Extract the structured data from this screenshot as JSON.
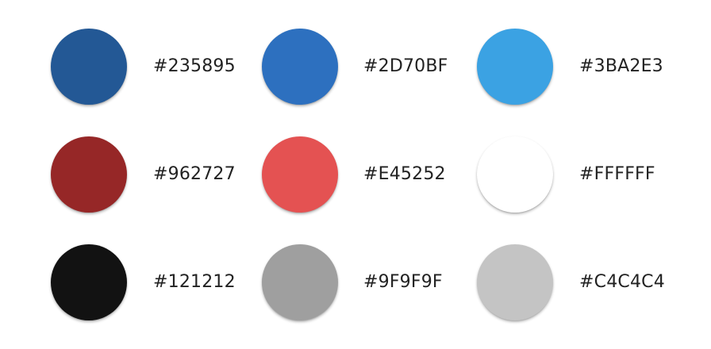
{
  "swatches": [
    {
      "color": "#235895",
      "label": "#235895"
    },
    {
      "color": "#2D70BF",
      "label": "#2D70BF"
    },
    {
      "color": "#3BA2E3",
      "label": "#3BA2E3"
    },
    {
      "color": "#962727",
      "label": "#962727"
    },
    {
      "color": "#E45252",
      "label": "#E45252"
    },
    {
      "color": "#FFFFFF",
      "label": "#FFFFFF"
    },
    {
      "color": "#121212",
      "label": "#121212"
    },
    {
      "color": "#9F9F9F",
      "label": "#9F9F9F"
    },
    {
      "color": "#C4C4C4",
      "label": "#C4C4C4"
    }
  ]
}
